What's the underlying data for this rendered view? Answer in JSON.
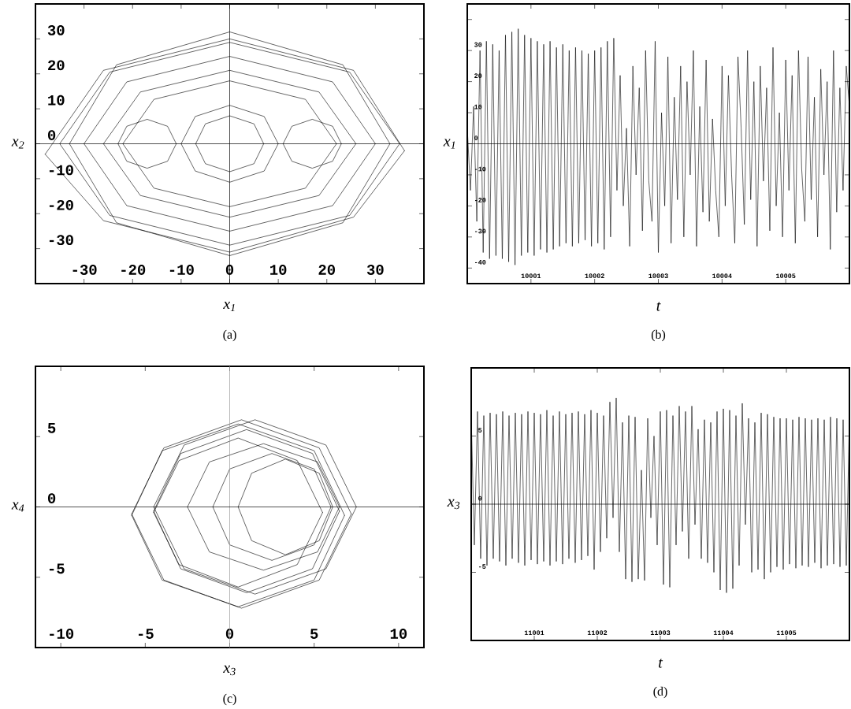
{
  "chart_data": [
    {
      "type": "line",
      "xlabel": "*x*$_{1}$",
      "ylabel": "*x*$_{2}$",
      "annotations": [
        "(a)"
      ],
      "series": [
        {
          "color": "#000000",
          "x": [
            -35,
            -24.7,
            0,
            24.7,
            35
          ],
          "values": [
            0,
            20.5,
            29,
            20.5,
            0
          ]
        },
        {
          "color": "#000000",
          "x": [
            -35,
            -24.7,
            0,
            24.7,
            35
          ],
          "values": [
            0,
            -20.5,
            -29,
            -20.5,
            0
          ]
        },
        {
          "color": "#000000",
          "x": [
            -30,
            -21.2,
            0,
            21.2,
            30
          ],
          "values": [
            0,
            17.7,
            25,
            17.7,
            0
          ]
        },
        {
          "color": "#000000",
          "x": [
            -30,
            -21.2,
            0,
            21.2,
            30
          ],
          "values": [
            0,
            -17.7,
            -25,
            -17.7,
            0
          ]
        },
        {
          "color": "#000000",
          "x": [
            11,
            12.8,
            17,
            21.2,
            23
          ],
          "values": [
            0,
            5,
            7,
            5,
            0
          ]
        },
        {
          "color": "#000000",
          "x": [
            11,
            12.8,
            17,
            21.2,
            23
          ],
          "values": [
            0,
            -5,
            -7,
            -5,
            0
          ]
        },
        {
          "color": "#000000",
          "x": [
            -22,
            -15.6,
            0,
            15.6,
            22
          ],
          "values": [
            0,
            12.7,
            18,
            12.7,
            0
          ]
        },
        {
          "color": "#000000",
          "x": [
            -22,
            -15.6,
            0,
            15.6,
            22
          ],
          "values": [
            0,
            -12.7,
            -18,
            -12.7,
            0
          ]
        },
        {
          "color": "#000000",
          "x": [
            -7,
            -5,
            0,
            5,
            7
          ],
          "values": [
            0,
            5.7,
            8,
            5.7,
            0
          ]
        },
        {
          "color": "#000000",
          "x": [
            -7,
            -5,
            0,
            5,
            7
          ],
          "values": [
            0,
            -5.7,
            -8,
            -5.7,
            0
          ]
        },
        {
          "color": "#000000",
          "x": [
            -10,
            -7.1,
            0,
            7.1,
            10
          ],
          "values": [
            0,
            7.8,
            11,
            7.8,
            0
          ]
        },
        {
          "color": "#000000",
          "x": [
            -10,
            -7.1,
            0,
            7.1,
            10
          ],
          "values": [
            0,
            -7.8,
            -11,
            -7.8,
            0
          ]
        },
        {
          "color": "#000000",
          "x": [
            -23,
            -21.2,
            -17,
            -12.8,
            -11
          ],
          "values": [
            0,
            5,
            7,
            5,
            0
          ]
        },
        {
          "color": "#000000",
          "x": [
            -23,
            -21.2,
            -17,
            -12.8,
            -11
          ],
          "values": [
            0,
            -5,
            -7,
            -5,
            0
          ]
        },
        {
          "color": "#000000",
          "x": [
            -26,
            -18.4,
            0,
            18.4,
            26
          ],
          "values": [
            0,
            14.8,
            21,
            14.8,
            0
          ]
        },
        {
          "color": "#000000",
          "x": [
            -26,
            -18.4,
            0,
            18.4,
            26
          ],
          "values": [
            0,
            -14.8,
            -21,
            -14.8,
            0
          ]
        },
        {
          "color": "#000000",
          "x": [
            -33,
            -23.3,
            0,
            23.3,
            33
          ],
          "values": [
            0,
            22.6,
            32,
            22.6,
            0
          ]
        },
        {
          "color": "#000000",
          "x": [
            -33,
            -23.3,
            0,
            23.3,
            33
          ],
          "values": [
            0,
            -22.6,
            -32,
            -22.6,
            0
          ]
        },
        {
          "color": "#000000",
          "x": [
            -38,
            -26,
            0,
            25.5,
            36
          ],
          "values": [
            -3,
            21,
            30,
            21,
            -2
          ]
        },
        {
          "color": "#000000",
          "x": [
            -38,
            -26,
            0,
            25.5,
            36
          ],
          "values": [
            -3,
            -22,
            -31,
            -21,
            -2
          ]
        }
      ],
      "xlim": [
        -40,
        40
      ],
      "ylim": [
        -40,
        40
      ],
      "xticks": [
        -30,
        -20,
        -10,
        0,
        10,
        20,
        30
      ],
      "yticks": [
        -30,
        -20,
        -10,
        0,
        10,
        20,
        30
      ],
      "ref_lines": [
        {
          "axis": "x",
          "value": 0,
          "color": "#000000"
        },
        {
          "axis": "y",
          "value": 0,
          "color": "#000000"
        }
      ]
    },
    {
      "type": "line",
      "xlabel": "t",
      "ylabel": "*x*$_{1}$",
      "annotations": [
        "(b)"
      ],
      "color": "#000000",
      "x": [
        10000,
        10000.05,
        10000.1,
        10000.15,
        10000.2,
        10000.25,
        10000.3,
        10000.35,
        10000.4,
        10000.45,
        10000.5,
        10000.55,
        10000.6,
        10000.65,
        10000.7,
        10000.75,
        10000.8,
        10000.85,
        10000.9,
        10000.95,
        10001,
        10001.05,
        10001.1,
        10001.15,
        10001.2,
        10001.25,
        10001.3,
        10001.35,
        10001.4,
        10001.45,
        10001.5,
        10001.55,
        10001.6,
        10001.65,
        10001.7,
        10001.75,
        10001.8,
        10001.85,
        10001.9,
        10001.95,
        10002,
        10002.05,
        10002.1,
        10002.15,
        10002.2,
        10002.25,
        10002.3,
        10002.35,
        10002.4,
        10002.45,
        10002.5,
        10002.55,
        10002.6,
        10002.65,
        10002.7,
        10002.75,
        10002.8,
        10002.85,
        10002.9,
        10002.95,
        10003,
        10003.05,
        10003.1,
        10003.15,
        10003.2,
        10003.25,
        10003.3,
        10003.35,
        10003.4,
        10003.45,
        10003.5,
        10003.55,
        10003.6,
        10003.65,
        10003.7,
        10003.75,
        10003.8,
        10003.85,
        10003.9,
        10003.95,
        10004,
        10004.05,
        10004.1,
        10004.15,
        10004.2,
        10004.25,
        10004.3,
        10004.35,
        10004.4,
        10004.45,
        10004.5,
        10004.55,
        10004.6,
        10004.65,
        10004.7,
        10004.75,
        10004.8,
        10004.85,
        10004.9,
        10004.95,
        10005,
        10005.05,
        10005.1,
        10005.15,
        10005.2,
        10005.25,
        10005.3,
        10005.35,
        10005.4,
        10005.45,
        10005.5,
        10005.55,
        10005.6,
        10005.65,
        10005.7,
        10005.75,
        10005.8,
        10005.85,
        10005.9,
        10005.95,
        10006
      ],
      "values": [
        5,
        -15,
        12,
        -25,
        30,
        -35,
        33,
        -37,
        32,
        -36,
        30,
        -37,
        35,
        -38,
        36,
        -39,
        37,
        -36,
        35,
        -35,
        34,
        -36,
        33,
        -34,
        32,
        -35,
        33,
        -34,
        31,
        -33,
        32,
        -32,
        30,
        -33,
        31,
        -32,
        30,
        -31,
        29,
        -33,
        30,
        -32,
        31,
        -34,
        33,
        -30,
        34,
        -15,
        22,
        -20,
        5,
        -33,
        25,
        -10,
        18,
        -28,
        30,
        -12,
        -25,
        33,
        -35,
        10,
        -20,
        28,
        -32,
        15,
        -18,
        25,
        -30,
        20,
        -10,
        30,
        -33,
        12,
        -22,
        27,
        -25,
        8,
        -15,
        -30,
        25,
        -20,
        22,
        -10,
        -32,
        28,
        5,
        -26,
        30,
        -18,
        20,
        -33,
        25,
        -12,
        18,
        -28,
        31,
        -20,
        10,
        -30,
        27,
        -15,
        22,
        -32,
        30,
        -8,
        -25,
        28,
        -18,
        15,
        -30,
        24,
        -10,
        20,
        -34,
        30,
        -22,
        18,
        -15,
        25,
        12
      ],
      "xlim": [
        10000,
        10006
      ],
      "ylim": [
        -45,
        45
      ],
      "xticks": [
        10001,
        10002,
        10003,
        10004,
        10005
      ],
      "yticks": [
        -40,
        -30,
        -20,
        -10,
        0,
        10,
        20,
        30,
        {
          "value": 40,
          "label": null
        }
      ],
      "ref_lines": [
        {
          "axis": "y",
          "value": 0,
          "color": "#000000"
        }
      ]
    },
    {
      "type": "line",
      "xlabel": "*x*$_{3}$",
      "ylabel": "*x*$_{4}$",
      "annotations": [
        "(c)"
      ],
      "series": [
        {
          "color": "#000000",
          "x": [
            -5.8,
            -3.9,
            0.7,
            5.3,
            7.2
          ],
          "values": [
            -0.5,
            4.2,
            6.2,
            4.2,
            -0.5
          ]
        },
        {
          "color": "#000000",
          "x": [
            -5.8,
            -3.9,
            0.7,
            5.3,
            7.2
          ],
          "values": [
            -0.5,
            -5.2,
            -7.2,
            -5.2,
            -0.5
          ]
        },
        {
          "color": "#000000",
          "x": [
            -4.5,
            -2.9,
            1,
            4.9,
            6.5
          ],
          "values": [
            -0.3,
            3.8,
            5.5,
            3.8,
            -0.3
          ]
        },
        {
          "color": "#000000",
          "x": [
            -4.5,
            -2.9,
            1,
            4.9,
            6.5
          ],
          "values": [
            -0.3,
            -4.4,
            -6.1,
            -4.4,
            -0.3
          ]
        },
        {
          "color": "#000000",
          "x": [
            -2.5,
            -1.2,
            2,
            5.2,
            6.5
          ],
          "values": [
            0,
            3.2,
            4.5,
            3.2,
            0
          ]
        },
        {
          "color": "#000000",
          "x": [
            -2.5,
            -1.2,
            2,
            5.2,
            6.5
          ],
          "values": [
            0,
            -3.2,
            -4.5,
            -3.2,
            0
          ]
        },
        {
          "color": "#000000",
          "x": [
            0.5,
            1.3,
            3.3,
            5.3,
            6.1
          ],
          "values": [
            0,
            2.4,
            3.4,
            2.4,
            0
          ]
        },
        {
          "color": "#000000",
          "x": [
            0.5,
            1.3,
            3.3,
            5.3,
            6.1
          ],
          "values": [
            0,
            -2.4,
            -3.4,
            -2.4,
            0
          ]
        },
        {
          "color": "#000000",
          "x": [
            -4.5,
            -2.7,
            1.5,
            5.7,
            7.5
          ],
          "values": [
            0,
            4.4,
            6.2,
            4.4,
            0
          ]
        },
        {
          "color": "#000000",
          "x": [
            -4.5,
            -2.7,
            1.5,
            5.7,
            7.5
          ],
          "values": [
            0,
            -4.4,
            -6.2,
            -4.4,
            0
          ]
        },
        {
          "color": "#000000",
          "x": [
            -4.5,
            -3,
            0.5,
            4,
            5.5
          ],
          "values": [
            -0.4,
            3.3,
            4.9,
            3.3,
            -0.4
          ]
        },
        {
          "color": "#000000",
          "x": [
            -4.5,
            -3,
            0.5,
            4,
            5.5
          ],
          "values": [
            -0.4,
            -4.1,
            -5.7,
            -4.1,
            -0.4
          ]
        },
        {
          "color": "#000000",
          "x": [
            -1,
            0,
            2.5,
            5,
            6
          ],
          "values": [
            0,
            2.7,
            3.8,
            2.7,
            0
          ]
        },
        {
          "color": "#000000",
          "x": [
            -1,
            0,
            2.5,
            5,
            6
          ],
          "values": [
            0,
            -2.7,
            -3.8,
            -2.7,
            0
          ]
        },
        {
          "color": "#000000",
          "x": [
            -5.8,
            -4,
            0.5,
            5,
            6.8
          ],
          "values": [
            -0.6,
            4,
            5.9,
            4,
            -0.6
          ]
        },
        {
          "color": "#000000",
          "x": [
            -5.8,
            -4,
            0.5,
            5,
            6.8
          ],
          "values": [
            -0.6,
            -5.2,
            -7.1,
            -5.2,
            -0.6
          ]
        }
      ],
      "xlim": [
        -11.5,
        11.5
      ],
      "ylim": [
        -10,
        10
      ],
      "xticks": [
        -10,
        -5,
        0,
        5,
        10
      ],
      "yticks": [
        -5,
        0,
        5
      ],
      "ref_lines": [
        {
          "axis": "x",
          "value": 0,
          "color": "#999999"
        },
        {
          "axis": "y",
          "value": 0,
          "color": "#000000"
        }
      ]
    },
    {
      "type": "line",
      "xlabel": "t",
      "ylabel": "*x*$_{3}$",
      "annotations": [
        "(d)"
      ],
      "color": "#000000",
      "x": [
        11000,
        11000.05,
        11000.1,
        11000.15,
        11000.2,
        11000.25,
        11000.3,
        11000.35,
        11000.4,
        11000.45,
        11000.5,
        11000.55,
        11000.6,
        11000.65,
        11000.7,
        11000.75,
        11000.8,
        11000.85,
        11000.9,
        11000.95,
        11001,
        11001.05,
        11001.1,
        11001.15,
        11001.2,
        11001.25,
        11001.3,
        11001.35,
        11001.4,
        11001.45,
        11001.5,
        11001.55,
        11001.6,
        11001.65,
        11001.7,
        11001.75,
        11001.8,
        11001.85,
        11001.9,
        11001.95,
        11002,
        11002.05,
        11002.1,
        11002.15,
        11002.2,
        11002.25,
        11002.3,
        11002.35,
        11002.4,
        11002.45,
        11002.5,
        11002.55,
        11002.6,
        11002.65,
        11002.7,
        11002.75,
        11002.8,
        11002.85,
        11002.9,
        11002.95,
        11003,
        11003.05,
        11003.1,
        11003.15,
        11003.2,
        11003.25,
        11003.3,
        11003.35,
        11003.4,
        11003.45,
        11003.5,
        11003.55,
        11003.6,
        11003.65,
        11003.7,
        11003.75,
        11003.8,
        11003.85,
        11003.9,
        11003.95,
        11004,
        11004.05,
        11004.1,
        11004.15,
        11004.2,
        11004.25,
        11004.3,
        11004.35,
        11004.4,
        11004.45,
        11004.5,
        11004.55,
        11004.6,
        11004.65,
        11004.7,
        11004.75,
        11004.8,
        11004.85,
        11004.9,
        11004.95,
        11005,
        11005.05,
        11005.1,
        11005.15,
        11005.2,
        11005.25,
        11005.3,
        11005.35,
        11005.4,
        11005.45,
        11005.5,
        11005.55,
        11005.6,
        11005.65,
        11005.7,
        11005.75,
        11005.8,
        11005.85,
        11005.9,
        11005.95,
        11006
      ],
      "values": [
        6.5,
        -3,
        6.8,
        -4,
        6.5,
        -4.5,
        6.7,
        -4,
        6.6,
        -4.2,
        6.8,
        -4.5,
        6.5,
        -4,
        6.7,
        -4.3,
        6.6,
        -4.5,
        6.8,
        -4.1,
        6.7,
        -4.4,
        6.6,
        -4.2,
        6.9,
        -4.5,
        6.5,
        -4.2,
        6.8,
        -4.4,
        6.6,
        -4,
        6.7,
        -4.3,
        6.8,
        -4.1,
        6.6,
        -3.8,
        6.9,
        -4.8,
        6.7,
        -3.5,
        6.5,
        -2.5,
        7.5,
        -1,
        7.8,
        -3.5,
        6,
        -5.5,
        6.5,
        -5.7,
        6.4,
        -5.5,
        2.5,
        -5.6,
        6.3,
        -1,
        5,
        -3,
        6.8,
        -5.9,
        6.9,
        -6.1,
        6.5,
        -3,
        7.2,
        -2,
        6.8,
        -4,
        7.2,
        -1.5,
        5.5,
        -4,
        6.2,
        -4.3,
        6,
        -5,
        6.8,
        -6.3,
        7,
        -6.5,
        6.9,
        -6.2,
        6.5,
        -4.5,
        7.4,
        -1.5,
        6.3,
        -5,
        6,
        -4.8,
        6.7,
        -5.5,
        6.6,
        -5,
        6.4,
        -4.6,
        6.3,
        -4.8,
        6.3,
        -4.4,
        6.2,
        -4.7,
        6.4,
        -4.5,
        6.3,
        -4.6,
        6.2,
        -4.3,
        6.3,
        -4.7,
        6.2,
        -4.5,
        6.4,
        -4.4,
        6.3,
        -4.6,
        6.2,
        -4.5,
        6.3
      ],
      "xlim": [
        11000,
        11006
      ],
      "ylim": [
        -10,
        10
      ],
      "xticks": [
        11001,
        11002,
        11003,
        11004,
        11005
      ],
      "yticks": [
        -5,
        0,
        5
      ],
      "ref_lines": [
        {
          "axis": "y",
          "value": 0,
          "color": "#000000"
        }
      ]
    }
  ]
}
